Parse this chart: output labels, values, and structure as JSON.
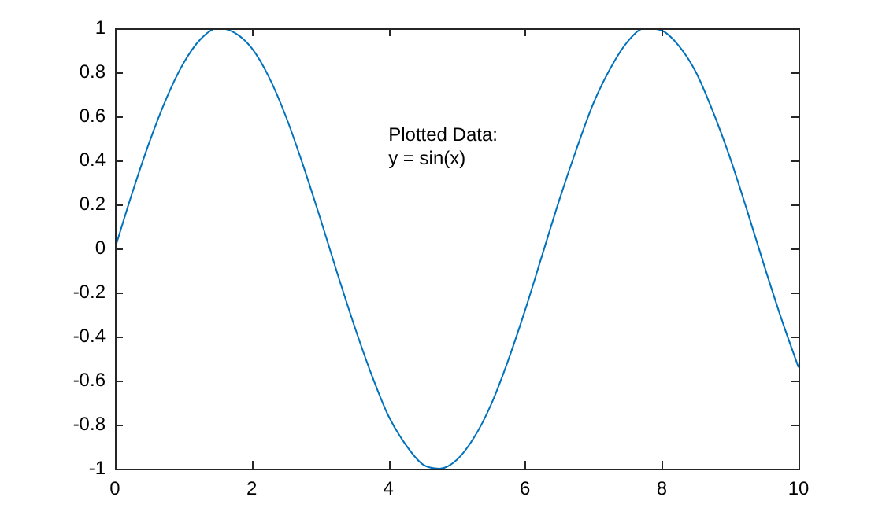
{
  "chart_data": {
    "type": "line",
    "x": [
      0,
      0.25,
      0.5,
      0.75,
      1,
      1.25,
      1.5,
      1.75,
      2,
      2.25,
      2.5,
      2.75,
      3,
      3.25,
      3.5,
      3.75,
      4,
      4.25,
      4.5,
      4.75,
      5,
      5.25,
      5.5,
      5.75,
      6,
      6.25,
      6.5,
      6.75,
      7,
      7.25,
      7.5,
      7.75,
      8,
      8.25,
      8.5,
      8.75,
      9,
      9.25,
      9.5,
      9.75,
      10
    ],
    "series": [
      {
        "color": "#0072bd",
        "values": [
          0,
          0.25,
          0.48,
          0.68,
          0.84,
          0.95,
          1,
          0.98,
          0.91,
          0.78,
          0.6,
          0.38,
          0.14,
          -0.11,
          -0.35,
          -0.57,
          -0.76,
          -0.89,
          -0.98,
          -1,
          -0.96,
          -0.86,
          -0.71,
          -0.51,
          -0.28,
          -0.03,
          0.22,
          0.45,
          0.66,
          0.82,
          0.94,
          1,
          0.99,
          0.92,
          0.8,
          0.62,
          0.41,
          0.17,
          -0.08,
          -0.32,
          -0.54
        ]
      }
    ],
    "xlim": [
      0,
      10
    ],
    "xticks": [
      0,
      2,
      4,
      6,
      8,
      10
    ],
    "ylim": [
      -1,
      1
    ],
    "yticks": [
      -1,
      -0.8,
      -0.6,
      -0.4,
      -0.2,
      0,
      0.2,
      0.4,
      0.6,
      0.8,
      1
    ],
    "annotations": [
      "Plotted Data:",
      "y = sin(x)"
    ],
    "grid": false,
    "legend": false
  }
}
